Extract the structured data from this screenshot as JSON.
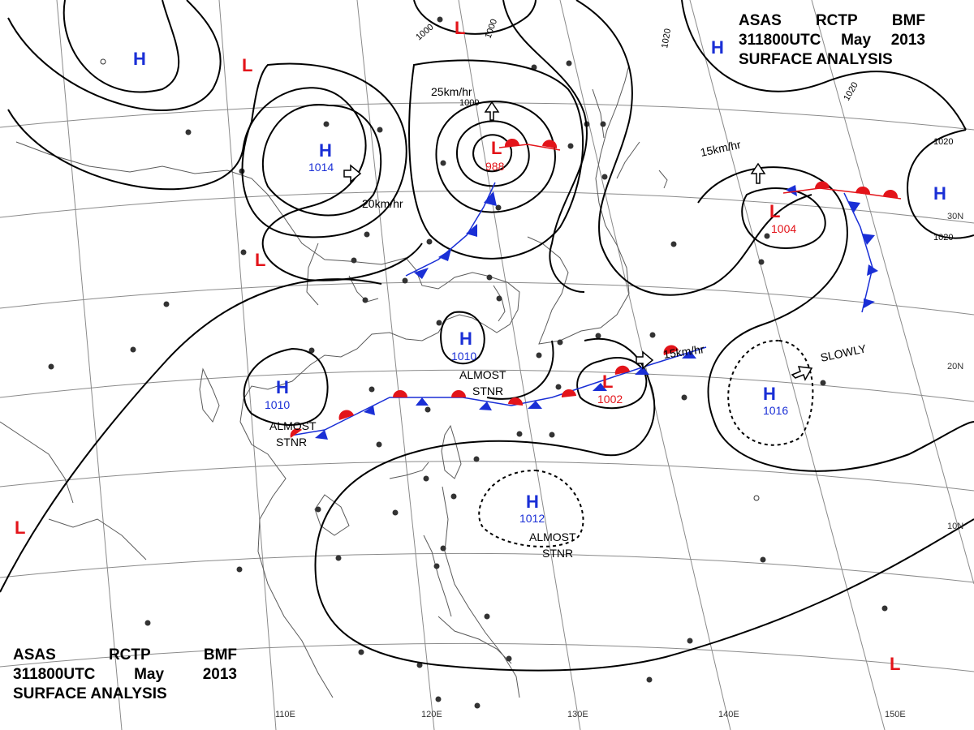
{
  "title": {
    "line1": [
      "ASAS",
      "RCTP",
      "BMF"
    ],
    "line2": [
      "311800UTC",
      "May",
      "2013"
    ],
    "line3": "SURFACE ANALYSIS"
  },
  "longitude_labels": [
    "110E",
    "120E",
    "130E",
    "140E",
    "150E"
  ],
  "latitude_labels": [
    "30N",
    "20N",
    "10N"
  ],
  "isobar_labels": [
    "1000",
    "1000",
    "1000",
    "1020",
    "1020",
    "1020",
    "1020"
  ],
  "pressure_centers": [
    {
      "type": "H",
      "value": ""
    },
    {
      "type": "L",
      "value": ""
    },
    {
      "type": "L",
      "value": ""
    },
    {
      "type": "H",
      "value": ""
    },
    {
      "type": "H",
      "value": "1014"
    },
    {
      "type": "L",
      "value": "988"
    },
    {
      "type": "L",
      "value": ""
    },
    {
      "type": "H",
      "value": ""
    },
    {
      "type": "L",
      "value": "1004"
    },
    {
      "type": "H",
      "value": "1010"
    },
    {
      "type": "H",
      "value": "1010"
    },
    {
      "type": "L",
      "value": "1002"
    },
    {
      "type": "H",
      "value": "1016"
    },
    {
      "type": "H",
      "value": "1012"
    },
    {
      "type": "L",
      "value": ""
    },
    {
      "type": "L",
      "value": ""
    }
  ],
  "motion_labels": [
    "25km/hr",
    "20km/hr",
    "15km/hr",
    "15km/hr",
    "SLOWLY"
  ],
  "status_notes": [
    {
      "line1": "ALMOST",
      "line2": "STNR"
    },
    {
      "line1": "ALMOST",
      "line2": "STNR"
    },
    {
      "line1": "ALMOST",
      "line2": "STNR"
    }
  ],
  "colors": {
    "high": "#1a2fd6",
    "low": "#e3141a",
    "isobar": "#000000",
    "coast": "#555555",
    "grid": "#888888"
  }
}
